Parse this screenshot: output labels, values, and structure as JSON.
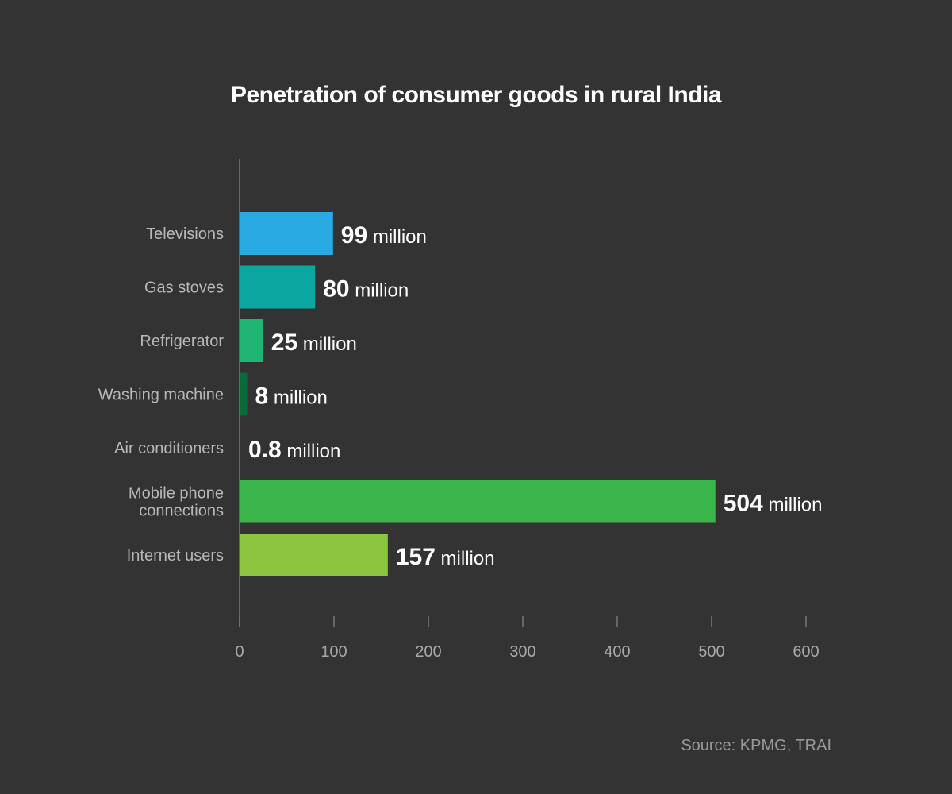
{
  "chart_data": {
    "type": "bar",
    "orientation": "horizontal",
    "title": "Penetration of consumer goods in rural India",
    "categories": [
      [
        "Televisions"
      ],
      [
        "Gas stoves"
      ],
      [
        "Refrigerator"
      ],
      [
        "Washing machine"
      ],
      [
        "Air conditioners"
      ],
      [
        "Mobile phone",
        "connections"
      ],
      [
        "Internet users"
      ]
    ],
    "values": [
      99,
      80,
      25,
      8,
      0.8,
      504,
      157
    ],
    "value_labels": [
      "99",
      "80",
      "25",
      "8",
      "0.8",
      "504",
      "157"
    ],
    "unit_label": "million",
    "bar_colors": [
      "#2aaae2",
      "#0aa8a0",
      "#21b573",
      "#096b3a",
      "#0e6a3a",
      "#39b54a",
      "#8cc63f"
    ],
    "xlim": [
      0,
      600
    ],
    "xticks": [
      0,
      100,
      200,
      300,
      400,
      500,
      600
    ],
    "xlabel": "",
    "ylabel": "",
    "grid": false,
    "legend": "none"
  },
  "source": "Source: KPMG, TRAI",
  "colors": {
    "background": "#333333",
    "axis": "#8a8a8a",
    "tick_label": "#a8a8a8",
    "category_label": "#b8b8b8",
    "value_label": "#ffffff"
  }
}
